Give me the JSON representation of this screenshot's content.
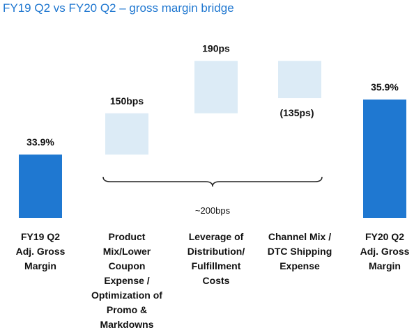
{
  "title": "FY19 Q2 vs FY20 Q2 – gross margin bridge",
  "colors": {
    "total": "#1f78d1",
    "change": "#dcebf6",
    "title": "#1f77d0",
    "text": "#111111",
    "brace": "#222222"
  },
  "chart_data": {
    "type": "bar",
    "subtype": "waterfall",
    "title": "FY19 Q2 vs FY20 Q2 – gross margin bridge",
    "unit": "percent",
    "categories": [
      "FY19 Q2 Adj. Gross Margin",
      "Product Mix/Lower Coupon Expense / Optimization of Promo & Markdowns",
      "Leverage of Distribution/ Fulfillment Costs",
      "Channel Mix / DTC Shipping Expense",
      "FY20 Q2 Adj. Gross Margin"
    ],
    "category_lines": [
      [
        "FY19 Q2",
        "Adj. Gross",
        "Margin"
      ],
      [
        "Product",
        "Mix/Lower",
        "Coupon",
        "Expense /",
        "Optimization of",
        "Promo &",
        "Markdowns"
      ],
      [
        "Leverage of",
        "Distribution/",
        "Fulfillment",
        "Costs"
      ],
      [
        "Channel Mix /",
        "DTC Shipping",
        "Expense"
      ],
      [
        "FY20 Q2",
        "Adj. Gross",
        "Margin"
      ]
    ],
    "values": [
      33.9,
      1.5,
      1.9,
      -1.35,
      35.9
    ],
    "kinds": [
      "total",
      "delta",
      "delta",
      "delta",
      "total"
    ],
    "labels": [
      "33.9%",
      "150bps",
      "190ps",
      "(135ps)",
      "35.9%"
    ],
    "annotation": {
      "text": "~200bps",
      "spans": [
        1,
        3
      ]
    },
    "baseline": 31.6
  }
}
